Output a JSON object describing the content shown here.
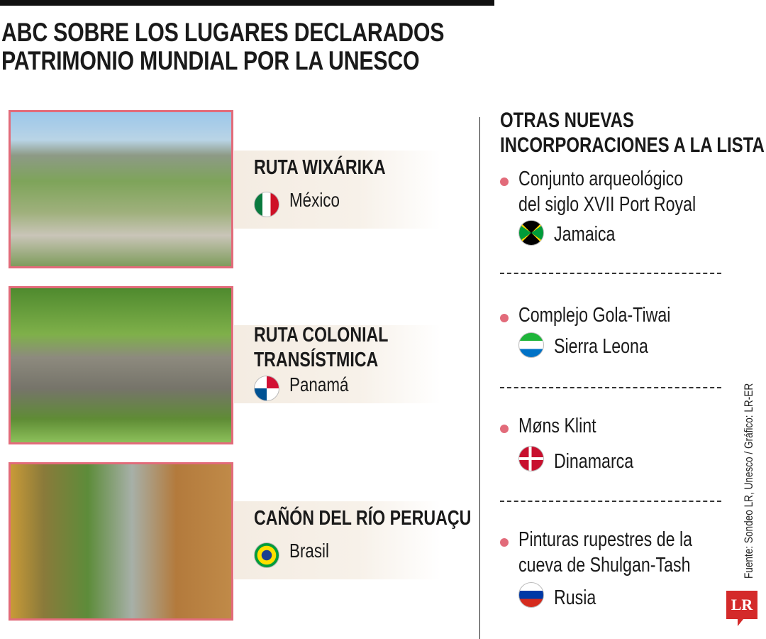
{
  "title": [
    "ABC SOBRE LOS LUGARES DECLARADOS",
    "PATRIMONIO MUNDIAL POR LA UNESCO"
  ],
  "sites": [
    {
      "name": [
        "RUTA WIXÁRIKA"
      ],
      "country": "México",
      "flag": "mexico-flag"
    },
    {
      "name": [
        "RUTA COLONIAL",
        "TRANSÍSTMICA"
      ],
      "country": "Panamá",
      "flag": "panama-flag"
    },
    {
      "name": [
        "CAÑÓN DEL RÍO PERUAÇU"
      ],
      "country": "Brasil",
      "flag": "brazil-flag"
    }
  ],
  "others": {
    "title": [
      "OTRAS NUEVAS",
      "INCORPORACIONES A LA LISTA"
    ],
    "items": [
      {
        "name": [
          "Conjunto arqueológico",
          "del siglo XVII Port Royal"
        ],
        "country": "Jamaica",
        "flag": "jamaica-flag"
      },
      {
        "name": [
          "Complejo Gola-Tiwai"
        ],
        "country": "Sierra Leona",
        "flag": "sierra-leone-flag"
      },
      {
        "name": [
          "Møns Klint"
        ],
        "country": "Dinamarca",
        "flag": "denmark-flag"
      },
      {
        "name": [
          "Pinturas rupestres de la",
          "cueva de Shulgan-Tash"
        ],
        "country": "Rusia",
        "flag": "russia-flag"
      }
    ]
  },
  "source": "Fuente: Sondeo LR, Unesco / Gráfico: LR-ER",
  "logo": "LR",
  "colors": {
    "accent": "#e26b7a",
    "logo": "#d42a2a",
    "panel": "#f4ece2"
  }
}
